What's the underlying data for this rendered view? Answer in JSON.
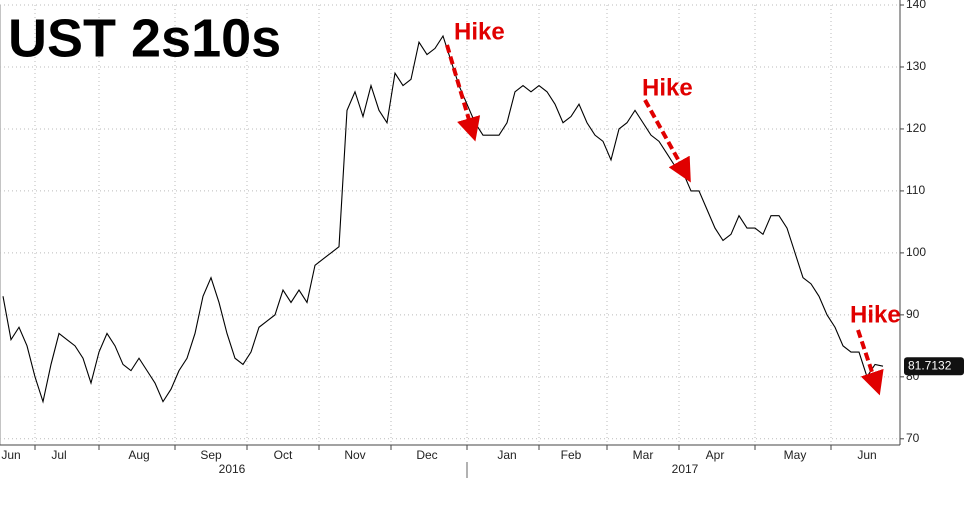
{
  "chart_data": {
    "type": "line",
    "title": "UST 2s10s",
    "annotations": [
      "Hike",
      "Hike",
      "Hike"
    ],
    "year_labels": [
      "2016",
      "2017"
    ],
    "last_value_label": "81.7132",
    "categories": [
      null,
      "Jun",
      null,
      null,
      null,
      null,
      null,
      "Jul",
      null,
      null,
      null,
      null,
      null,
      null,
      null,
      null,
      null,
      "Aug",
      null,
      null,
      null,
      null,
      null,
      null,
      null,
      null,
      "Sep",
      null,
      null,
      null,
      null,
      null,
      null,
      null,
      null,
      "Oct",
      null,
      null,
      null,
      null,
      null,
      null,
      null,
      null,
      "Nov",
      null,
      null,
      null,
      null,
      null,
      null,
      null,
      null,
      "Dec",
      null,
      null,
      null,
      null,
      null,
      null,
      null,
      null,
      null,
      "Jan",
      null,
      null,
      null,
      null,
      null,
      null,
      null,
      "Feb",
      null,
      null,
      null,
      null,
      null,
      null,
      null,
      null,
      "Mar",
      null,
      null,
      null,
      null,
      null,
      null,
      null,
      null,
      "Apr",
      null,
      null,
      null,
      null,
      null,
      null,
      null,
      null,
      null,
      "May",
      null,
      null,
      null,
      null,
      null,
      null,
      null,
      null,
      "Jun",
      null,
      null
    ],
    "series": [
      {
        "name": "UST 2s10s",
        "color": "#000000",
        "values": [
          93,
          86,
          88,
          85,
          80,
          76,
          82,
          87,
          86,
          85,
          83,
          79,
          84,
          87,
          85,
          82,
          81,
          83,
          81,
          79,
          76,
          78,
          81,
          83,
          87,
          93,
          96,
          92,
          87,
          83,
          82,
          84,
          88,
          89,
          90,
          94,
          92,
          94,
          92,
          98,
          99,
          100,
          101,
          123,
          126,
          122,
          127,
          123,
          121,
          129,
          127,
          128,
          134,
          132,
          133,
          135,
          131,
          127,
          124,
          121,
          119,
          119,
          119,
          121,
          126,
          127,
          126,
          127,
          126,
          124,
          121,
          122,
          124,
          121,
          119,
          118,
          115,
          120,
          121,
          123,
          121,
          119,
          118,
          116,
          114,
          113,
          110,
          110,
          107,
          104,
          102,
          103,
          106,
          104,
          104,
          103,
          106,
          106,
          104,
          100,
          96,
          95,
          93,
          90,
          88,
          85,
          84,
          84,
          80,
          82,
          81.7132
        ]
      }
    ],
    "ylim": [
      69,
      140
    ],
    "yticks": [
      70,
      80,
      90,
      100,
      110,
      120,
      130,
      140
    ],
    "grid": true
  }
}
